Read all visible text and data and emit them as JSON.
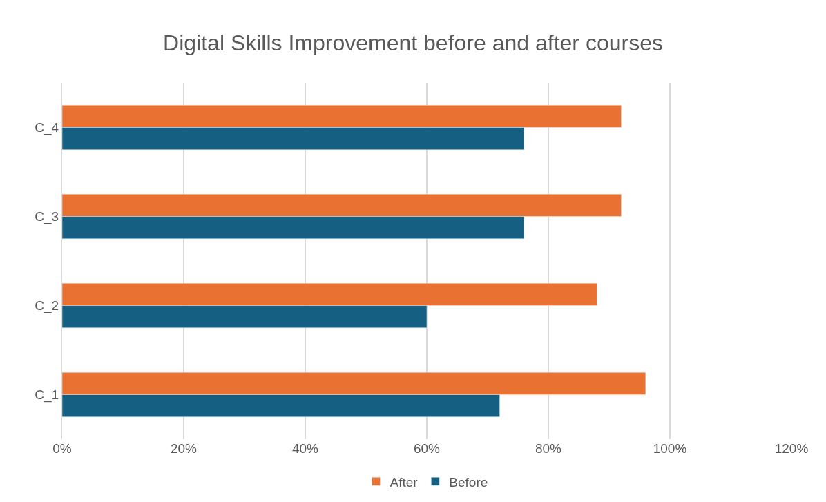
{
  "chart_data": {
    "type": "bar",
    "orientation": "horizontal",
    "title": "Digital Skills Improvement before and after courses",
    "categories": [
      "C_4",
      "C_3",
      "C_2",
      "C_1"
    ],
    "series": [
      {
        "name": "After",
        "color": "#e97132",
        "values": [
          92,
          92,
          88,
          96
        ]
      },
      {
        "name": "Before",
        "color": "#156082",
        "values": [
          76,
          76,
          60,
          72
        ]
      }
    ],
    "xlim": [
      0,
      120
    ],
    "xticks": [
      {
        "value": 0,
        "label": "0%"
      },
      {
        "value": 20,
        "label": "20%"
      },
      {
        "value": 40,
        "label": "40%"
      },
      {
        "value": 60,
        "label": "60%"
      },
      {
        "value": 80,
        "label": "80%"
      },
      {
        "value": 100,
        "label": "100%"
      },
      {
        "value": 120,
        "label": "120%"
      }
    ],
    "grid": "x",
    "legend": "bottom"
  }
}
